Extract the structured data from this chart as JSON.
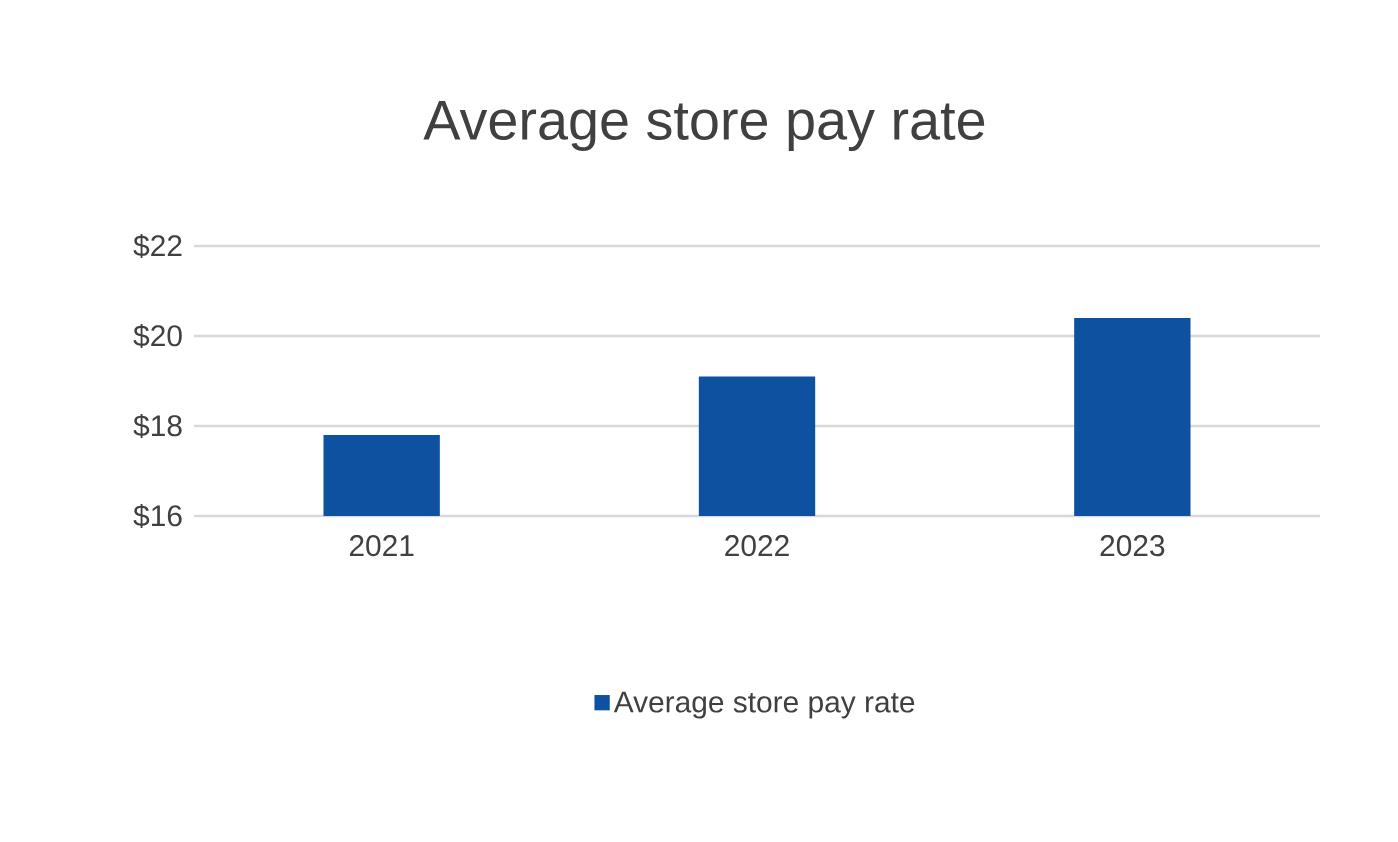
{
  "chart_data": {
    "type": "bar",
    "title": "Average store pay rate",
    "categories": [
      "2021",
      "2022",
      "2023"
    ],
    "series": [
      {
        "name": "Average store pay rate",
        "color": "#0f51a1",
        "values": [
          17.8,
          19.1,
          20.4
        ]
      }
    ],
    "ylim": [
      16,
      22
    ],
    "yticks": [
      {
        "value": 16,
        "label": "$16"
      },
      {
        "value": 18,
        "label": "$18"
      },
      {
        "value": 20,
        "label": "$20"
      },
      {
        "value": 22,
        "label": "$22"
      }
    ],
    "grid": "y",
    "legend": "bottom"
  }
}
